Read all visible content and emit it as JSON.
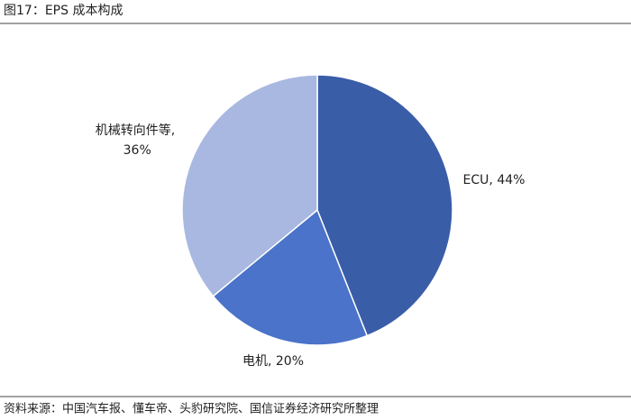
{
  "chart_data": {
    "type": "pie",
    "title": "图17：EPS 成本构成",
    "labels": [
      "ECU, 44%",
      "电机, 20%",
      "机械转向件等, 36%"
    ],
    "values": [
      44,
      20,
      36
    ],
    "colors": [
      "#3a5da8",
      "#4a73c9",
      "#a9b8e0"
    ],
    "source": "资料来源：中国汽车报、懂车帝、头豹研究院、国信证券经济研究所整理"
  }
}
